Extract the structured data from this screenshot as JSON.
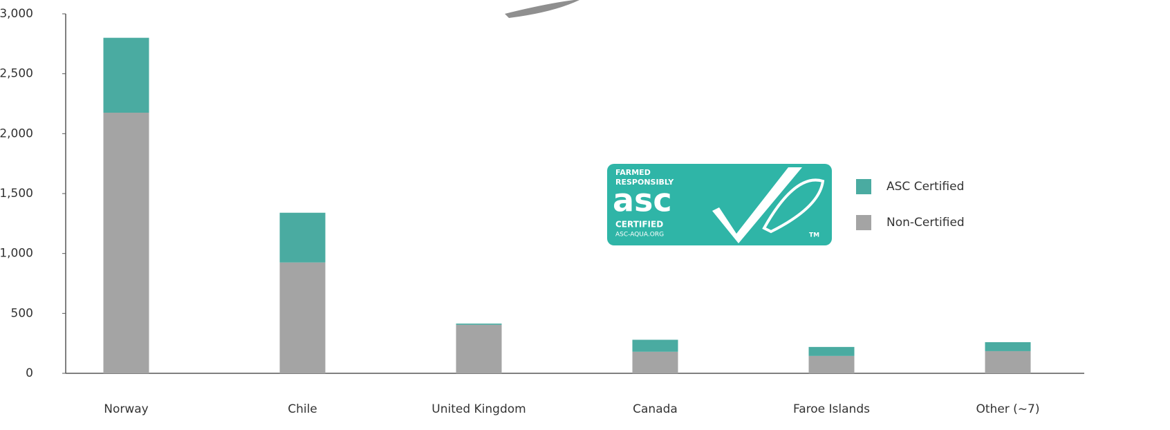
{
  "chart_data": {
    "type": "stacked_bar",
    "categories": [
      "Norway",
      "Chile",
      "United Kingdom",
      "Canada",
      "Faroe Islands",
      "Other (~7)"
    ],
    "series": [
      {
        "name": "Non-Certified",
        "color": "#a4a4a4",
        "values": [
          2175,
          925,
          405,
          180,
          145,
          185
        ]
      },
      {
        "name": "ASC Certified",
        "color": "#4aaba1",
        "values": [
          625,
          415,
          10,
          100,
          75,
          75
        ]
      }
    ],
    "ylim": [
      0,
      3000
    ],
    "yticks": [
      0,
      500,
      {
        "value": 1000,
        "label": "1,000"
      },
      {
        "value": 1500,
        "label": "1,500"
      },
      {
        "value": 2000,
        "label": "2,000"
      },
      {
        "value": 2500,
        "label": "2,500"
      },
      {
        "value": 3000,
        "label": "3,000"
      }
    ],
    "grid": false,
    "logo": {
      "line1": "FARMED",
      "line2": "RESPONSIBLY",
      "mark": "asc",
      "line3": "CERTIFIED",
      "line4": "ASC-AQUA.ORG",
      "tm": "TM"
    }
  }
}
